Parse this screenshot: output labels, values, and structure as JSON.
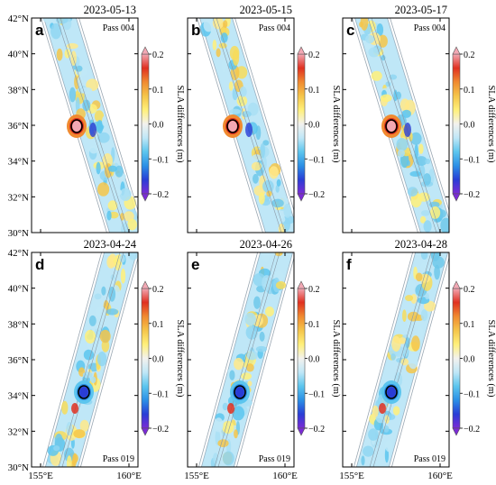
{
  "figure": {
    "latitude_ticks": [
      "30°N",
      "32°N",
      "34°N",
      "36°N",
      "38°N",
      "40°N",
      "42°N"
    ],
    "longitude_ticks": [
      "155°E",
      "160°E"
    ],
    "colorbar": {
      "label": "SLA differences (m)",
      "ticks": [
        "0.2",
        "0.1",
        "0.0",
        "−0.1",
        "−0.2"
      ],
      "colors": [
        "#7b2bd6",
        "#2a3dd6",
        "#2b8fe6",
        "#5cc5ee",
        "#bfe7f7",
        "#f3f2ee",
        "#fff07a",
        "#f5c54a",
        "#f08a30",
        "#e03020",
        "#f2a8b4"
      ]
    },
    "panels": [
      {
        "letter": "a",
        "date": "2023-05-13",
        "pass": "Pass 004"
      },
      {
        "letter": "b",
        "date": "2023-05-15",
        "pass": "Pass 004"
      },
      {
        "letter": "c",
        "date": "2023-05-17",
        "pass": "Pass 004"
      },
      {
        "letter": "d",
        "date": "2023-04-24",
        "pass": "Pass 019"
      },
      {
        "letter": "e",
        "date": "2023-04-26",
        "pass": "Pass 019"
      },
      {
        "letter": "f",
        "date": "2023-04-28",
        "pass": "Pass 019"
      }
    ]
  }
}
